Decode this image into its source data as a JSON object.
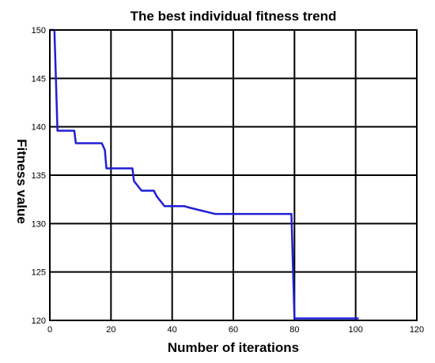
{
  "chart_data": {
    "type": "line",
    "title": "The best individual fitness trend",
    "xlabel": "Number of iterations",
    "ylabel": "Fitness value",
    "xlim": [
      0,
      120
    ],
    "ylim": [
      120,
      150
    ],
    "xticks": [
      0,
      20,
      40,
      60,
      80,
      100,
      120
    ],
    "yticks": [
      120,
      125,
      130,
      135,
      140,
      145,
      150
    ],
    "grid": true,
    "series": [
      {
        "color": "#1f1fd6",
        "points": [
          [
            0,
            150
          ],
          [
            1.5,
            150
          ],
          [
            2.5,
            139.6
          ],
          [
            8,
            139.6
          ],
          [
            8.5,
            138.3
          ],
          [
            17,
            138.3
          ],
          [
            18,
            137.6
          ],
          [
            18.5,
            135.7
          ],
          [
            27,
            135.7
          ],
          [
            27.5,
            134.4
          ],
          [
            30,
            133.4
          ],
          [
            34,
            133.4
          ],
          [
            35,
            132.8
          ],
          [
            37.5,
            131.8
          ],
          [
            44,
            131.8
          ],
          [
            45,
            131.7
          ],
          [
            54,
            131
          ],
          [
            79,
            131
          ],
          [
            80,
            120.2
          ],
          [
            101,
            120.2
          ]
        ]
      }
    ]
  }
}
